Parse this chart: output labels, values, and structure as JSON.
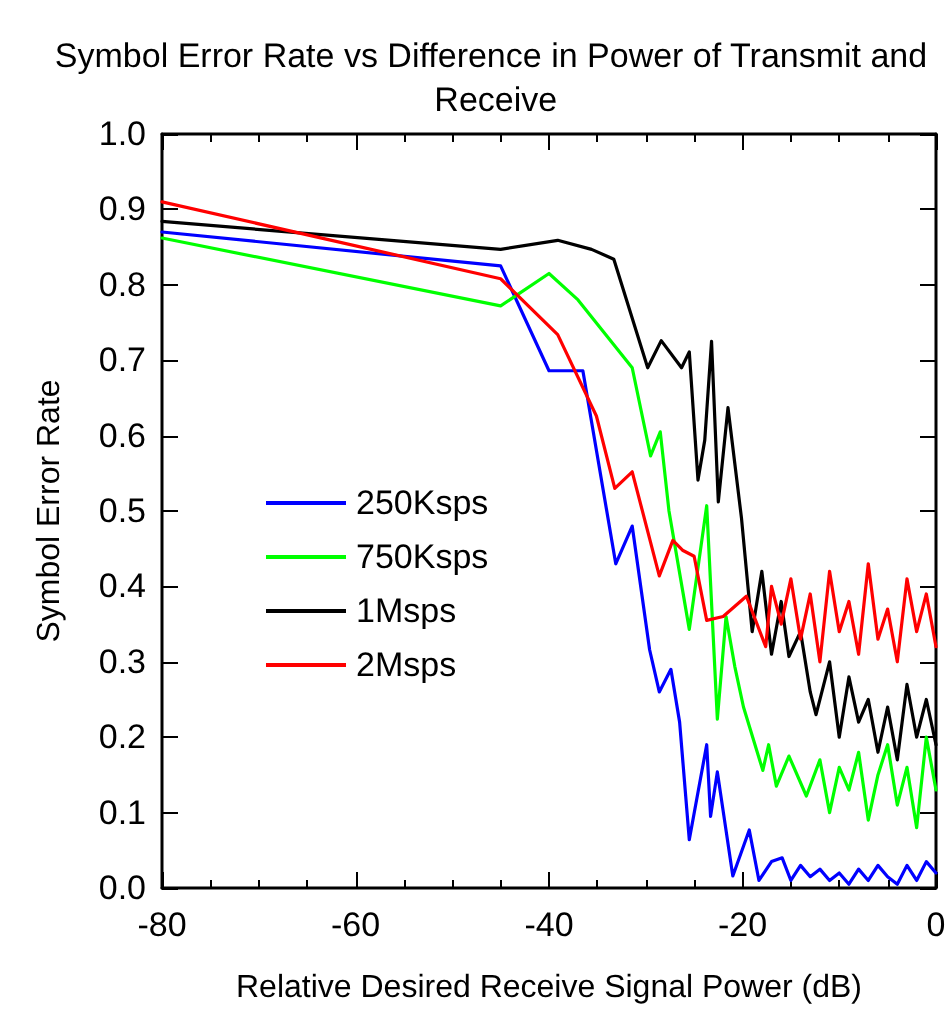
{
  "chart_data": {
    "type": "line",
    "title": "Symbol Error Rate vs Difference in Power of Transmit and Receive",
    "xlabel": "Relative Desired Receive Signal Power (dB)",
    "ylabel": "Symbol Error Rate",
    "xlim": [
      -80,
      0
    ],
    "xticks": [
      -80,
      -60,
      -40,
      -20,
      0
    ],
    "ylim": [
      0,
      1
    ],
    "yticks": [
      {
        "value": 0,
        "label": "0.0"
      },
      {
        "value": 0.1,
        "label": "0.1"
      },
      {
        "value": 0.2,
        "label": "0.2"
      },
      {
        "value": 0.3,
        "label": "0.3"
      },
      {
        "value": 0.4,
        "label": "0.4"
      },
      {
        "value": 0.5,
        "label": "0.5"
      },
      {
        "value": 0.6,
        "label": "0.6"
      },
      {
        "value": 0.7,
        "label": "0.7"
      },
      {
        "value": 0.8,
        "label": "0.8"
      },
      {
        "value": 0.9,
        "label": "0.9"
      },
      {
        "value": 1,
        "label": "1.0"
      }
    ],
    "grid": false,
    "legend": "left",
    "marker": "none",
    "line_style": "solid",
    "series": [
      {
        "name": "250Ksps",
        "color": "#0000ff",
        "x": [
          -80,
          -45,
          -40,
          -36.5,
          -33.1,
          -31.4,
          -29.6,
          -28.6,
          -27.4,
          -26.5,
          -25.5,
          -23.7,
          -23.3,
          -22.6,
          -21,
          -19.3,
          -18.3,
          -17,
          -15.9,
          -15,
          -14,
          -13,
          -12,
          -11,
          -10,
          -9,
          -8,
          -7,
          -6,
          -5,
          -4,
          -3,
          -2,
          -1,
          0
        ],
        "values": [
          0.87,
          0.825,
          0.686,
          0.686,
          0.43,
          0.48,
          0.316,
          0.26,
          0.29,
          0.22,
          0.064,
          0.19,
          0.095,
          0.154,
          0.016,
          0.077,
          0.01,
          0.035,
          0.04,
          0.01,
          0.03,
          0.015,
          0.025,
          0.01,
          0.02,
          0.005,
          0.025,
          0.01,
          0.03,
          0.015,
          0.005,
          0.03,
          0.01,
          0.035,
          0.02
        ]
      },
      {
        "name": "750Ksps",
        "color": "#00ff00",
        "x": [
          -80,
          -45,
          -40,
          -37,
          -31.4,
          -29.5,
          -28.5,
          -27.6,
          -25.5,
          -23.7,
          -22.6,
          -21.7,
          -20.8,
          -19.9,
          -17.9,
          -17.3,
          -16.5,
          -15.2,
          -13.4,
          -12,
          -11,
          -10,
          -9,
          -8,
          -7,
          -6,
          -5,
          -4,
          -3,
          -2,
          -1,
          0
        ],
        "values": [
          0.862,
          0.772,
          0.815,
          0.78,
          0.69,
          0.573,
          0.605,
          0.5,
          0.343,
          0.507,
          0.224,
          0.36,
          0.294,
          0.24,
          0.156,
          0.19,
          0.135,
          0.175,
          0.122,
          0.17,
          0.1,
          0.16,
          0.13,
          0.18,
          0.09,
          0.15,
          0.19,
          0.11,
          0.16,
          0.08,
          0.2,
          0.13
        ]
      },
      {
        "name": "1Msps",
        "color": "#000000",
        "x": [
          -80,
          -45,
          -39.1,
          -35.6,
          -33.3,
          -29.8,
          -28.4,
          -26.3,
          -25.5,
          -24.6,
          -23.9,
          -23.2,
          -22.5,
          -21.5,
          -20.1,
          -19,
          -18,
          -17,
          -16,
          -15.2,
          -14,
          -13,
          -12.4,
          -11,
          -10,
          -9,
          -8,
          -7,
          -6,
          -5,
          -4,
          -3,
          -2,
          -1,
          0
        ],
        "values": [
          0.884,
          0.847,
          0.859,
          0.847,
          0.834,
          0.69,
          0.726,
          0.69,
          0.711,
          0.541,
          0.594,
          0.725,
          0.512,
          0.637,
          0.49,
          0.34,
          0.42,
          0.31,
          0.38,
          0.307,
          0.34,
          0.26,
          0.23,
          0.3,
          0.2,
          0.28,
          0.22,
          0.25,
          0.18,
          0.24,
          0.17,
          0.27,
          0.2,
          0.25,
          0.19
        ]
      },
      {
        "name": "2Msps",
        "color": "#ff0000",
        "x": [
          -80,
          -45,
          -39.1,
          -35.1,
          -33.2,
          -31.4,
          -28.6,
          -27.2,
          -26.2,
          -25,
          -23.7,
          -22,
          -19.6,
          -17.6,
          -17,
          -16,
          -15,
          -14,
          -13,
          -12,
          -11,
          -10,
          -9,
          -8,
          -7,
          -6,
          -5,
          -4,
          -3,
          -2,
          -1,
          0
        ],
        "values": [
          0.91,
          0.808,
          0.734,
          0.626,
          0.53,
          0.552,
          0.414,
          0.461,
          0.448,
          0.44,
          0.355,
          0.36,
          0.387,
          0.32,
          0.4,
          0.35,
          0.41,
          0.33,
          0.39,
          0.3,
          0.42,
          0.34,
          0.38,
          0.31,
          0.43,
          0.33,
          0.37,
          0.3,
          0.41,
          0.34,
          0.39,
          0.32
        ]
      }
    ]
  }
}
